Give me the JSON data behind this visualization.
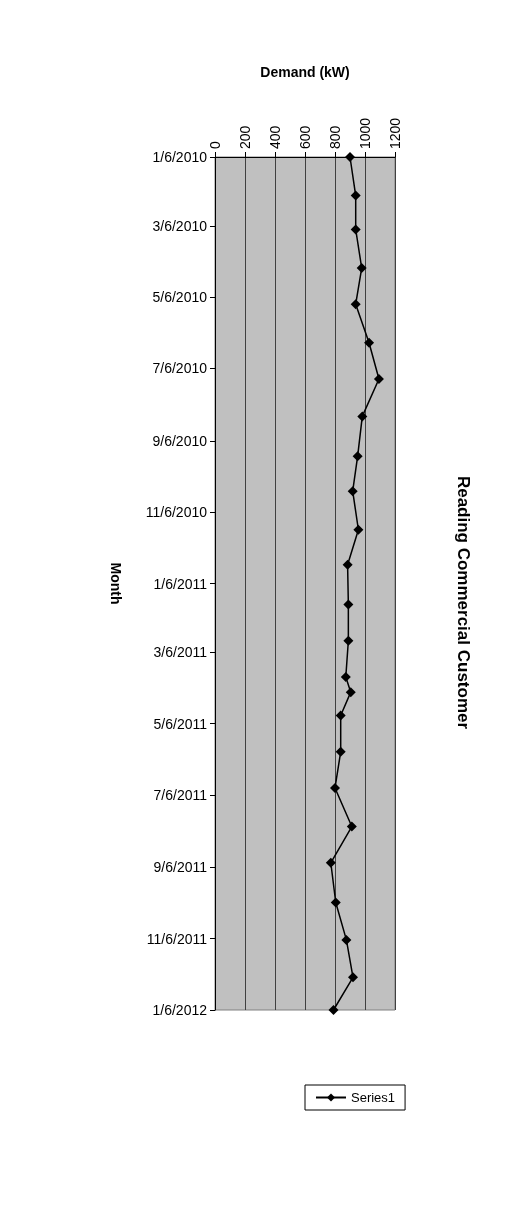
{
  "chart_data": {
    "type": "line",
    "orientation": "horizontal",
    "title": "Reading Commercial Customer",
    "xlabel": "Demand (kW)",
    "ylabel": "Month",
    "x": [
      "2010-01-06",
      "2010-02-08",
      "2010-03-09",
      "2010-04-11",
      "2010-05-12",
      "2010-06-14",
      "2010-07-15",
      "2010-08-16",
      "2010-09-19",
      "2010-10-19",
      "2010-11-21",
      "2010-12-21",
      "2011-01-24",
      "2011-02-24",
      "2011-03-27",
      "2011-04-09",
      "2011-04-29",
      "2011-05-30",
      "2011-06-30",
      "2011-08-02",
      "2011-09-02",
      "2011-10-06",
      "2011-11-07",
      "2011-12-09",
      "2012-01-06"
    ],
    "series": [
      {
        "name": "Series1",
        "color": "#000000",
        "values": [
          900,
          938,
          938,
          978,
          938,
          1027,
          1093,
          982,
          951,
          918,
          956,
          884,
          889,
          889,
          872,
          905,
          838,
          838,
          800,
          912,
          772,
          805,
          876,
          920,
          790
        ]
      }
    ],
    "ylim": [
      "2012-01-06",
      "2010-01-06"
    ],
    "yticks": [
      {
        "value": "2010-01-06",
        "label": "1/6/2010"
      },
      {
        "value": "2010-03-06",
        "label": "3/6/2010"
      },
      {
        "value": "2010-05-06",
        "label": "5/6/2010"
      },
      {
        "value": "2010-07-06",
        "label": "7/6/2010"
      },
      {
        "value": "2010-09-06",
        "label": "9/6/2010"
      },
      {
        "value": "2010-11-06",
        "label": "11/6/2010"
      },
      {
        "value": "2011-01-06",
        "label": "1/6/2011"
      },
      {
        "value": "2011-03-06",
        "label": "3/6/2011"
      },
      {
        "value": "2011-05-06",
        "label": "5/6/2011"
      },
      {
        "value": "2011-07-06",
        "label": "7/6/2011"
      },
      {
        "value": "2011-09-06",
        "label": "9/6/2011"
      },
      {
        "value": "2011-11-06",
        "label": "11/6/2011"
      },
      {
        "value": "2012-01-06",
        "label": "1/6/2012"
      }
    ],
    "xlim": [
      0,
      1200
    ],
    "xticks": [
      0,
      200,
      400,
      600,
      800,
      1000,
      1200
    ],
    "grid": "x",
    "legend": "bottom",
    "marker": "diamond",
    "line_style": "solid"
  }
}
